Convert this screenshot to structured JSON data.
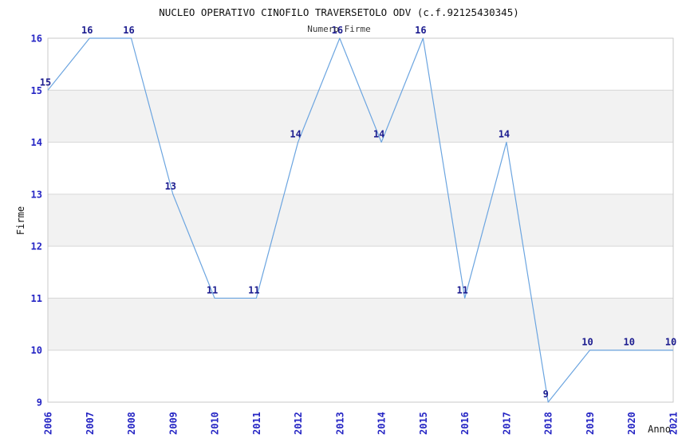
{
  "chart_data": {
    "type": "line",
    "title": "NUCLEO OPERATIVO CINOFILO TRAVERSETOLO ODV (c.f.92125430345)",
    "subtitle": "Numero Firme",
    "xlabel": "Anno",
    "ylabel": "Firme",
    "x": [
      2006,
      2007,
      2008,
      2009,
      2010,
      2011,
      2012,
      2013,
      2014,
      2015,
      2016,
      2017,
      2018,
      2019,
      2020,
      2021
    ],
    "values": [
      15,
      16,
      16,
      13,
      11,
      11,
      14,
      16,
      14,
      16,
      11,
      14,
      9,
      10,
      10,
      10
    ],
    "ylim": [
      9,
      16
    ],
    "yticks": [
      9,
      10,
      11,
      12,
      13,
      14,
      15,
      16
    ],
    "bands": [
      [
        10,
        11
      ],
      [
        12,
        13
      ],
      [
        14,
        15
      ]
    ],
    "grid": "horizontal-only",
    "legend": "none",
    "point_labels_shown": true,
    "colors": {
      "line": "#6ca5e0",
      "point_label": "#1c1c8f",
      "tick_label": "#2525c4",
      "title": "#111111",
      "subtitle": "#3a3a3a",
      "band": "#f2f2f2",
      "gridline": "#d6d6d6",
      "border": "#c9c9c9",
      "background": "#ffffff"
    }
  }
}
